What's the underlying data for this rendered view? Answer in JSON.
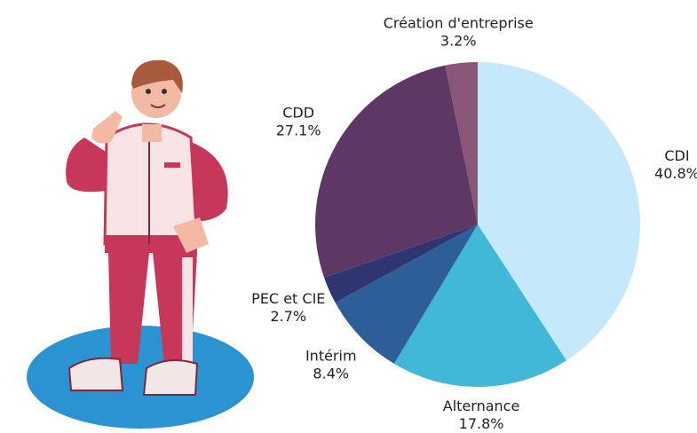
{
  "chart_data": {
    "type": "pie",
    "categories": [
      "CDI",
      "Alternance",
      "Intérim",
      "PEC et CIE",
      "CDD",
      "Création d'entreprise"
    ],
    "values": [
      40.8,
      17.8,
      8.4,
      2.7,
      27.1,
      3.2
    ],
    "value_labels": [
      "40.8%",
      "17.8%",
      "8.4%",
      "2.7%",
      "27.1%",
      "3.2%"
    ],
    "colors": [
      "#c6e8fb",
      "#42b8d8",
      "#2e5e98",
      "#2e3570",
      "#5e3865",
      "#8a5675"
    ]
  }
}
